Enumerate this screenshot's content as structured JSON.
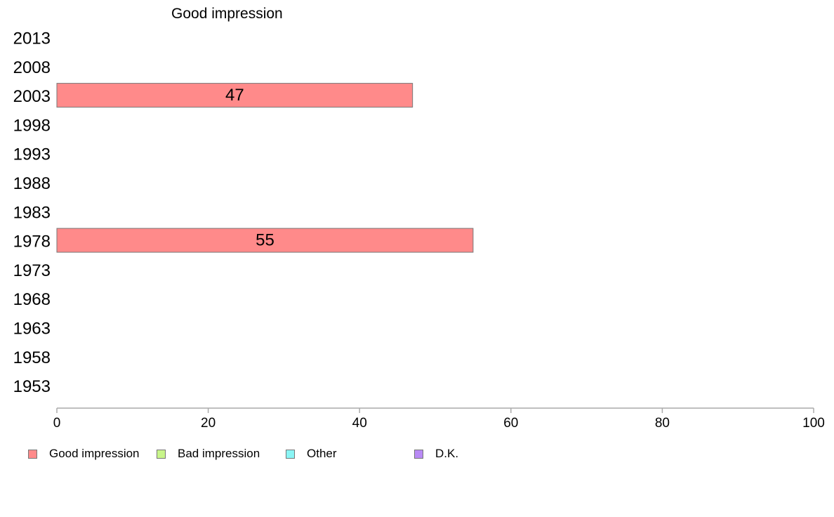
{
  "chart_data": {
    "type": "bar",
    "orientation": "horizontal",
    "title": "Good impression",
    "categories": [
      "2013",
      "2008",
      "2003",
      "1998",
      "1993",
      "1988",
      "1983",
      "1978",
      "1973",
      "1968",
      "1963",
      "1958",
      "1953"
    ],
    "series": [
      {
        "name": "Good impression",
        "color": "#ff8a8a",
        "values": [
          null,
          null,
          47,
          null,
          null,
          null,
          null,
          55,
          null,
          null,
          null,
          null,
          null
        ]
      },
      {
        "name": "Bad impression",
        "color": "#c8f58a",
        "values": [
          null,
          null,
          null,
          null,
          null,
          null,
          null,
          null,
          null,
          null,
          null,
          null,
          null
        ]
      },
      {
        "name": "Other",
        "color": "#8af5f5",
        "values": [
          null,
          null,
          null,
          null,
          null,
          null,
          null,
          null,
          null,
          null,
          null,
          null,
          null
        ]
      },
      {
        "name": "D.K.",
        "color": "#b98af5",
        "values": [
          null,
          null,
          null,
          null,
          null,
          null,
          null,
          null,
          null,
          null,
          null,
          null,
          null
        ]
      }
    ],
    "data_labels": [
      "",
      "",
      "47",
      "",
      "",
      "",
      "",
      "55",
      "",
      "",
      "",
      "",
      ""
    ],
    "xlim": [
      0,
      100
    ],
    "xticks": [
      "0",
      "20",
      "40",
      "60",
      "80",
      "100"
    ],
    "xlabel": "",
    "ylabel": "",
    "grid": false,
    "legend_position": "bottom-left"
  }
}
